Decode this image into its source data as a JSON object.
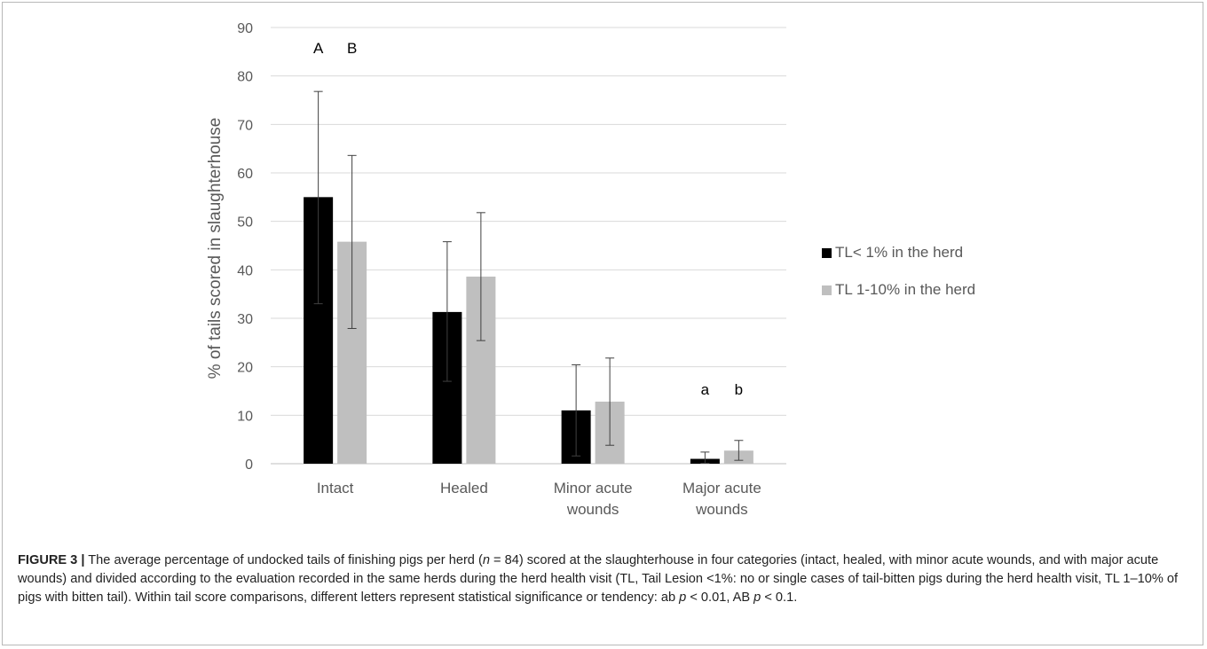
{
  "chart_data": {
    "type": "bar",
    "categories": [
      "Intact",
      "Healed",
      "Minor acute\nwounds",
      "Major acute\nwounds"
    ],
    "series": [
      {
        "name": "TL< 1% in the herd",
        "color": "#000000",
        "values": [
          55,
          31.3,
          11,
          1
        ],
        "err_low": [
          33,
          17,
          1.6,
          0.1
        ],
        "err_high": [
          76.8,
          45.8,
          20.4,
          2.4
        ]
      },
      {
        "name": "TL 1-10% in the herd",
        "color": "#bfbfbf",
        "values": [
          45.8,
          38.6,
          12.8,
          2.7
        ],
        "err_low": [
          27.9,
          25.4,
          3.8,
          0.7
        ],
        "err_high": [
          63.6,
          51.8,
          21.8,
          4.8
        ]
      }
    ],
    "ylabel": "% of tails scored in slaughterhouse",
    "xlabel": "",
    "ylim": [
      0,
      90
    ],
    "yticks": [
      "0",
      "10",
      "20",
      "30",
      "40",
      "50",
      "60",
      "70",
      "80",
      "90"
    ],
    "grid": true,
    "legend_position": "right",
    "annotations": [
      {
        "category_index": 0,
        "letters": [
          "A",
          "B"
        ]
      },
      {
        "category_index": 3,
        "letters": [
          "a",
          "b"
        ]
      }
    ]
  },
  "caption": {
    "label": "FIGURE 3",
    "separator": "|",
    "parts": [
      "The average percentage of undocked tails of finishing pigs per herd (",
      "n",
      " = 84) scored at the slaughterhouse in four categories (intact, healed, with minor acute wounds, and with major acute wounds) and divided according to the evaluation recorded in the same herds during the herd health visit (TL, Tail Lesion <1%: no or single cases of tail-bitten pigs during the herd health visit, TL 1–10% of pigs with bitten tail). Within tail score comparisons, different letters represent statistical significance or tendency: ab ",
      "p",
      " < 0.01, AB ",
      "p",
      " < 0.1."
    ]
  }
}
